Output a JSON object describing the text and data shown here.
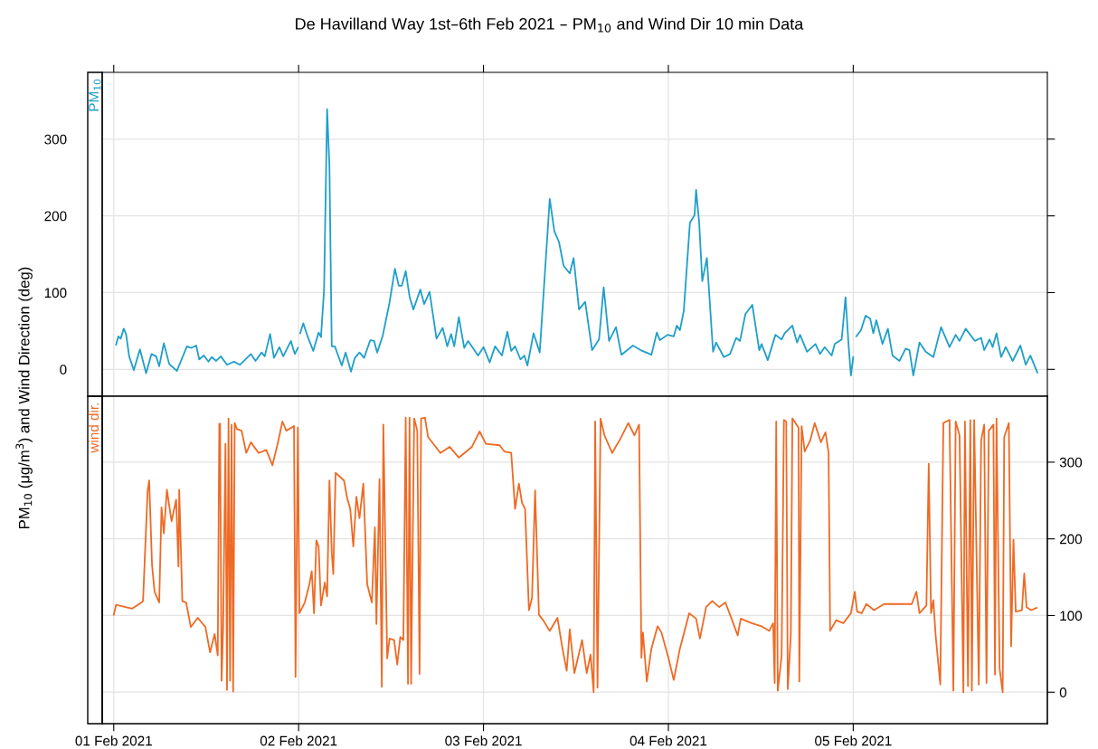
{
  "chart_data": [
    {
      "type": "line",
      "title": "De Havilland Way 1st–6th Feb 2021 – PM$_{10}$ and Wind Dir 10 min Data",
      "ylabel": "PM$_{10}$ (μg/m$^{3}$) and Wind Direction (deg)",
      "grid": true,
      "tick_labels": "y",
      "xlim": [
        "2021-01-31T22:30",
        "2021-02-06T01:12"
      ],
      "xticks": [
        {
          "value": "2021-02-01",
          "label": null
        },
        {
          "value": "2021-02-02",
          "label": null
        },
        {
          "value": "2021-02-03",
          "label": null
        },
        {
          "value": "2021-02-04",
          "label": null
        },
        {
          "value": "2021-02-05",
          "label": null
        }
      ],
      "ylim": [
        -35,
        387
      ],
      "yticks": [
        0,
        100,
        200,
        300
      ],
      "series": [
        {
          "name": "PM$_{10}$",
          "color": "#1f9fc9",
          "x": [
            "2021-02-01T00:18",
            "2021-02-01T00:36",
            "2021-02-01T00:54",
            "2021-02-01T01:18",
            "2021-02-01T01:36",
            "2021-02-01T02:00",
            "2021-02-01T02:36",
            "2021-02-01T03:24",
            "2021-02-01T04:12",
            "2021-02-01T04:54",
            "2021-02-01T05:30",
            "2021-02-01T05:54",
            "2021-02-01T06:30",
            "2021-02-01T07:12",
            "2021-02-01T08:12",
            "2021-02-01T09:30",
            "2021-02-01T10:06",
            "2021-02-01T10:42",
            "2021-02-01T11:06",
            "2021-02-01T11:42",
            "2021-02-01T12:18",
            "2021-02-01T12:42",
            "2021-02-01T13:18",
            "2021-02-01T13:54",
            "2021-02-01T14:42",
            "2021-02-01T15:36",
            "2021-02-01T16:24",
            "2021-02-01T17:48",
            "2021-02-01T18:24",
            "2021-02-01T19:12",
            "2021-02-01T19:36",
            "2021-02-01T20:18",
            "2021-02-01T20:48",
            "2021-02-01T21:30",
            "2021-02-01T22:00",
            "2021-02-01T23:00",
            "2021-02-01T23:30",
            "2021-02-01T23:54",
            "2021-02-02T00:00",
            "2021-02-02T00:12",
            "2021-02-02T00:36",
            "2021-02-02T01:12",
            "2021-02-02T01:54",
            "2021-02-02T02:36",
            "2021-02-02T02:54",
            "2021-02-02T03:18",
            "2021-02-02T03:42",
            "2021-02-02T04:00",
            "2021-02-02T04:18",
            "2021-02-02T04:42",
            "2021-02-02T05:36",
            "2021-02-02T06:06",
            "2021-02-02T06:48",
            "2021-02-02T07:18",
            "2021-02-02T07:54",
            "2021-02-02T08:30",
            "2021-02-02T09:18",
            "2021-02-02T09:48",
            "2021-02-02T10:12",
            "2021-02-02T10:54",
            "2021-02-02T11:48",
            "2021-02-02T12:30",
            "2021-02-02T13:00",
            "2021-02-02T13:24",
            "2021-02-02T13:54",
            "2021-02-02T14:24",
            "2021-02-02T14:54",
            "2021-02-02T15:48",
            "2021-02-02T16:18",
            "2021-02-02T17:00",
            "2021-02-02T17:54",
            "2021-02-02T18:42",
            "2021-02-02T19:18",
            "2021-02-02T19:48",
            "2021-02-02T20:12",
            "2021-02-02T20:48",
            "2021-02-02T21:30",
            "2021-02-02T22:00",
            "2021-02-02T23:18",
            "2021-02-03T00:00",
            "2021-02-03T00:48",
            "2021-02-03T01:30",
            "2021-02-03T02:24",
            "2021-02-03T03:06",
            "2021-02-03T03:36",
            "2021-02-03T04:06",
            "2021-02-03T04:48",
            "2021-02-03T05:18",
            "2021-02-03T05:42",
            "2021-02-03T06:30",
            "2021-02-03T07:18",
            "2021-02-03T08:36",
            "2021-02-03T09:12",
            "2021-02-03T09:48",
            "2021-02-03T10:24",
            "2021-02-03T11:12",
            "2021-02-03T11:42",
            "2021-02-03T12:24",
            "2021-02-03T13:12",
            "2021-02-03T14:06",
            "2021-02-03T15:00",
            "2021-02-03T15:36",
            "2021-02-03T16:18",
            "2021-02-03T17:12",
            "2021-02-03T17:54",
            "2021-02-03T19:24",
            "2021-02-03T20:24",
            "2021-02-03T21:48",
            "2021-02-03T22:30",
            "2021-02-03T22:54",
            "2021-02-03T23:54",
            "2021-02-04T00:42",
            "2021-02-04T01:06",
            "2021-02-04T01:30",
            "2021-02-04T02:00",
            "2021-02-04T02:48",
            "2021-02-04T03:24",
            "2021-02-04T03:36",
            "2021-02-04T04:00",
            "2021-02-04T04:24",
            "2021-02-04T05:00",
            "2021-02-04T05:48",
            "2021-02-04T06:12",
            "2021-02-04T07:12",
            "2021-02-04T08:00",
            "2021-02-04T08:48",
            "2021-02-04T09:18",
            "2021-02-04T10:00",
            "2021-02-04T10:54",
            "2021-02-04T11:48",
            "2021-02-04T12:06",
            "2021-02-04T12:54",
            "2021-02-04T13:54",
            "2021-02-04T14:42",
            "2021-02-04T15:06",
            "2021-02-04T16:06",
            "2021-02-04T16:42",
            "2021-02-04T17:06",
            "2021-02-04T18:00",
            "2021-02-04T19:06",
            "2021-02-04T19:42",
            "2021-02-04T20:18",
            "2021-02-04T21:12",
            "2021-02-04T21:36",
            "2021-02-04T22:30",
            "2021-02-04T23:00",
            "2021-02-04T23:24",
            "2021-02-04T23:42",
            "2021-02-05T00:00",
            "2021-02-05T00:06",
            "2021-02-05T00:24",
            "2021-02-05T01:00",
            "2021-02-05T01:36",
            "2021-02-05T02:12",
            "2021-02-05T02:36",
            "2021-02-05T03:00",
            "2021-02-05T03:48",
            "2021-02-05T04:30",
            "2021-02-05T05:06",
            "2021-02-05T06:00",
            "2021-02-05T06:48",
            "2021-02-05T07:18",
            "2021-02-05T07:48",
            "2021-02-05T08:36",
            "2021-02-05T09:24",
            "2021-02-05T10:24",
            "2021-02-05T11:24",
            "2021-02-05T12:30",
            "2021-02-05T13:18",
            "2021-02-05T13:48",
            "2021-02-05T14:36",
            "2021-02-05T15:48",
            "2021-02-05T16:36",
            "2021-02-05T17:00",
            "2021-02-05T17:42",
            "2021-02-05T18:06",
            "2021-02-05T18:36",
            "2021-02-05T19:12",
            "2021-02-05T19:48",
            "2021-02-05T20:42",
            "2021-02-05T21:42",
            "2021-02-05T22:24",
            "2021-02-05T23:00",
            "2021-02-05T23:54"
          ],
          "values": [
            32,
            43,
            40,
            53,
            46,
            17,
            -1,
            26,
            -5,
            20,
            17,
            4,
            34,
            7,
            -2,
            30,
            28,
            31,
            13,
            18,
            10,
            16,
            11,
            17,
            6,
            10,
            6,
            20,
            11,
            22,
            17,
            46,
            15,
            29,
            17,
            37,
            20,
            28,
            null,
            47,
            60,
            42,
            24,
            48,
            42,
            103,
            339,
            265,
            30,
            30,
            5,
            22,
            -3,
            15,
            22,
            15,
            38,
            37,
            22,
            43,
            87,
            131,
            109,
            109,
            128,
            95,
            78,
            104,
            85,
            101,
            40,
            54,
            30,
            46,
            30,
            68,
            28,
            37,
            18,
            29,
            9,
            30,
            18,
            49,
            24,
            30,
            13,
            18,
            5,
            47,
            22,
            222,
            180,
            166,
            135,
            125,
            145,
            78,
            88,
            25,
            39,
            107,
            37,
            55,
            19,
            31,
            25,
            19,
            48,
            38,
            45,
            43,
            57,
            51,
            76,
            191,
            201,
            234,
            191,
            115,
            145,
            23,
            35,
            16,
            20,
            41,
            37,
            72,
            84,
            25,
            33,
            12,
            45,
            39,
            47,
            57,
            35,
            45,
            23,
            33,
            20,
            29,
            18,
            33,
            39,
            94,
            31,
            -8,
            16,
            null,
            43,
            51,
            70,
            66,
            47,
            64,
            33,
            53,
            18,
            11,
            27,
            25,
            -8,
            35,
            23,
            16,
            55,
            29,
            45,
            37,
            53,
            37,
            41,
            25,
            39,
            29,
            47,
            16,
            29,
            11,
            31,
            6,
            18,
            -4
          ]
        }
      ]
    },
    {
      "type": "line",
      "grid": true,
      "xlim": [
        "2021-01-31T22:30",
        "2021-02-06T01:12"
      ],
      "xticks": [
        {
          "value": "2021-02-01",
          "label": "01 Feb 2021"
        },
        {
          "value": "2021-02-02",
          "label": "02 Feb 2021"
        },
        {
          "value": "2021-02-03",
          "label": "03 Feb 2021"
        },
        {
          "value": "2021-02-04",
          "label": "04 Feb 2021"
        },
        {
          "value": "2021-02-05",
          "label": "05 Feb 2021"
        }
      ],
      "y2lim": [
        -41,
        386
      ],
      "y2ticks": [
        0,
        100,
        200,
        300
      ],
      "series": [
        {
          "name": "wind dir.",
          "color": "#ee6a24",
          "axis": "y2",
          "x": [
            "2021-02-01T00:00",
            "2021-02-01T00:18",
            "2021-02-01T02:24",
            "2021-02-01T03:36",
            "2021-02-01T03:48",
            "2021-02-01T04:24",
            "2021-02-01T04:36",
            "2021-02-01T04:58",
            "2021-02-01T05:18",
            "2021-02-01T05:54",
            "2021-02-01T06:12",
            "2021-02-01T06:30",
            "2021-02-01T06:54",
            "2021-02-01T07:30",
            "2021-02-01T08:06",
            "2021-02-01T08:24",
            "2021-02-01T08:30",
            "2021-02-01T08:54",
            "2021-02-01T09:24",
            "2021-02-01T10:00",
            "2021-02-01T10:54",
            "2021-02-01T11:54",
            "2021-02-01T12:30",
            "2021-02-01T13:06",
            "2021-02-01T13:30",
            "2021-02-01T13:42",
            "2021-02-01T13:48",
            "2021-02-01T14:00",
            "2021-02-01T14:12",
            "2021-02-01T14:30",
            "2021-02-01T14:42",
            "2021-02-01T14:54",
            "2021-02-01T15:06",
            "2021-02-01T15:18",
            "2021-02-01T15:30",
            "2021-02-01T15:42",
            "2021-02-01T16:00",
            "2021-02-01T16:36",
            "2021-02-01T17:12",
            "2021-02-01T17:48",
            "2021-02-01T18:48",
            "2021-02-01T19:48",
            "2021-02-01T20:36",
            "2021-02-01T21:18",
            "2021-02-01T21:54",
            "2021-02-01T22:24",
            "2021-02-01T23:24",
            "2021-02-01T23:36",
            "2021-02-01T23:54",
            "2021-02-02T00:06",
            "2021-02-02T00:48",
            "2021-02-02T01:24",
            "2021-02-02T01:42",
            "2021-02-02T02:00",
            "2021-02-02T02:18",
            "2021-02-02T02:36",
            "2021-02-02T02:54",
            "2021-02-02T03:24",
            "2021-02-02T03:42",
            "2021-02-02T04:00",
            "2021-02-02T04:18",
            "2021-02-02T04:30",
            "2021-02-02T04:48",
            "2021-02-02T05:54",
            "2021-02-02T06:18",
            "2021-02-02T06:42",
            "2021-02-02T07:06",
            "2021-02-02T07:30",
            "2021-02-02T07:54",
            "2021-02-02T08:24",
            "2021-02-02T08:54",
            "2021-02-02T09:30",
            "2021-02-02T09:54",
            "2021-02-02T10:06",
            "2021-02-02T10:30",
            "2021-02-02T10:48",
            "2021-02-02T11:00",
            "2021-02-02T11:30",
            "2021-02-02T11:48",
            "2021-02-02T12:24",
            "2021-02-02T12:48",
            "2021-02-02T13:12",
            "2021-02-02T13:36",
            "2021-02-02T13:54",
            "2021-02-02T14:12",
            "2021-02-02T14:24",
            "2021-02-02T14:36",
            "2021-02-02T15:00",
            "2021-02-02T15:24",
            "2021-02-02T15:42",
            "2021-02-02T15:54",
            "2021-02-02T16:24",
            "2021-02-02T16:48",
            "2021-02-02T18:24",
            "2021-02-02T19:36",
            "2021-02-02T20:48",
            "2021-02-02T22:30",
            "2021-02-02T23:30",
            "2021-02-03T00:18",
            "2021-02-03T02:06",
            "2021-02-03T02:42",
            "2021-02-03T03:36",
            "2021-02-03T04:06",
            "2021-02-03T04:36",
            "2021-02-03T05:00",
            "2021-02-03T05:24",
            "2021-02-03T05:54",
            "2021-02-03T06:18",
            "2021-02-03T06:42",
            "2021-02-03T07:12",
            "2021-02-03T07:48",
            "2021-02-03T08:36",
            "2021-02-03T09:36",
            "2021-02-03T10:12",
            "2021-02-03T10:48",
            "2021-02-03T11:12",
            "2021-02-03T11:48",
            "2021-02-03T12:48",
            "2021-02-03T13:24",
            "2021-02-03T13:54",
            "2021-02-03T14:18",
            "2021-02-03T14:30",
            "2021-02-03T14:48",
            "2021-02-03T15:12",
            "2021-02-03T15:42",
            "2021-02-03T16:42",
            "2021-02-03T17:48",
            "2021-02-03T18:48",
            "2021-02-03T19:36",
            "2021-02-03T20:12",
            "2021-02-03T20:30",
            "2021-02-03T20:42",
            "2021-02-03T21:12",
            "2021-02-03T21:48",
            "2021-02-03T22:36",
            "2021-02-03T23:06",
            "2021-02-04T00:00",
            "2021-02-04T00:42",
            "2021-02-04T01:30",
            "2021-02-04T02:42",
            "2021-02-04T03:36",
            "2021-02-04T04:06",
            "2021-02-04T04:54",
            "2021-02-04T05:42",
            "2021-02-04T06:36",
            "2021-02-04T07:24",
            "2021-02-04T08:12",
            "2021-02-04T09:00",
            "2021-02-04T09:24",
            "2021-02-04T10:48",
            "2021-02-04T12:06",
            "2021-02-04T13:06",
            "2021-02-04T13:36",
            "2021-02-04T13:48",
            "2021-02-04T14:00",
            "2021-02-04T14:12",
            "2021-02-04T14:42",
            "2021-02-04T15:00",
            "2021-02-04T15:18",
            "2021-02-04T15:30",
            "2021-02-04T15:54",
            "2021-02-04T16:06",
            "2021-02-04T16:54",
            "2021-02-04T17:00",
            "2021-02-04T17:18",
            "2021-02-04T17:42",
            "2021-02-04T18:24",
            "2021-02-04T19:00",
            "2021-02-04T19:48",
            "2021-02-04T20:24",
            "2021-02-04T20:48",
            "2021-02-04T21:00",
            "2021-02-04T21:48",
            "2021-02-04T22:42",
            "2021-02-04T23:42",
            "2021-02-05T00:12",
            "2021-02-05T00:30",
            "2021-02-05T01:06",
            "2021-02-05T01:42",
            "2021-02-05T02:42",
            "2021-02-05T04:00",
            "2021-02-05T06:00",
            "2021-02-05T07:36",
            "2021-02-05T08:12",
            "2021-02-05T08:36",
            "2021-02-05T09:30",
            "2021-02-05T09:48",
            "2021-02-05T10:06",
            "2021-02-05T10:24",
            "2021-02-05T10:42",
            "2021-02-05T11:18",
            "2021-02-05T11:42",
            "2021-02-05T12:30",
            "2021-02-05T13:00",
            "2021-02-05T13:18",
            "2021-02-05T13:48",
            "2021-02-05T14:18",
            "2021-02-05T14:30",
            "2021-02-05T14:54",
            "2021-02-05T15:12",
            "2021-02-05T15:24",
            "2021-02-05T15:42",
            "2021-02-05T16:18",
            "2021-02-05T16:36",
            "2021-02-05T17:00",
            "2021-02-05T17:18",
            "2021-02-05T17:36",
            "2021-02-05T18:12",
            "2021-02-05T18:24",
            "2021-02-05T18:36",
            "2021-02-05T19:00",
            "2021-02-05T19:24",
            "2021-02-05T19:36",
            "2021-02-05T20:12",
            "2021-02-05T20:30",
            "2021-02-05T20:48",
            "2021-02-05T21:06",
            "2021-02-05T21:54",
            "2021-02-05T22:12",
            "2021-02-05T22:30",
            "2021-02-05T23:06",
            "2021-02-05T23:48"
          ],
          "values": [
            101,
            114,
            109,
            117,
            119,
            263,
            276,
            166,
            131,
            117,
            241,
            207,
            264,
            223,
            251,
            164,
            264,
            119,
            117,
            85,
            97,
            85,
            52,
            76,
            48,
            350,
            350,
            15,
            85,
            324,
            3,
            357,
            15,
            349,
            1,
            351,
            343,
            341,
            312,
            326,
            312,
            316,
            296,
            325,
            353,
            341,
            347,
            20,
            345,
            103,
            117,
            141,
            158,
            103,
            198,
            190,
            113,
            143,
            125,
            276,
            182,
            154,
            286,
            276,
            253,
            239,
            190,
            255,
            227,
            272,
            141,
            117,
            215,
            89,
            278,
            7,
            349,
            44,
            70,
            68,
            36,
            72,
            68,
            358,
            11,
            358,
            11,
            357,
            341,
            24,
            357,
            358,
            333,
            312,
            320,
            306,
            320,
            340,
            324,
            322,
            314,
            312,
            239,
            272,
            247,
            239,
            107,
            123,
            263,
            101,
            93,
            80,
            97,
            60,
            28,
            82,
            25,
            68,
            25,
            49,
            0,
            353,
            6,
            357,
            335,
            312,
            331,
            351,
            335,
            349,
            45,
            78,
            14,
            57,
            86,
            78,
            45,
            16,
            57,
            103,
            96,
            70,
            111,
            119,
            111,
            117,
            96,
            74,
            96,
            90,
            86,
            80,
            90,
            12,
            353,
            2,
            47,
            355,
            353,
            4,
            76,
            357,
            345,
            14,
            347,
            314,
            328,
            351,
            326,
            339,
            312,
            80,
            94,
            90,
            103,
            131,
            105,
            103,
            115,
            107,
            115,
            115,
            115,
            131,
            103,
            113,
            298,
            103,
            120,
            74,
            10,
            351,
            355,
            2,
            353,
            335,
            0,
            353,
            8,
            355,
            2,
            355,
            10,
            328,
            349,
            12,
            341,
            349,
            23,
            357,
            31,
            0,
            333,
            351,
            60,
            199,
            105,
            107,
            155,
            111,
            107,
            110
          ]
        }
      ]
    }
  ]
}
